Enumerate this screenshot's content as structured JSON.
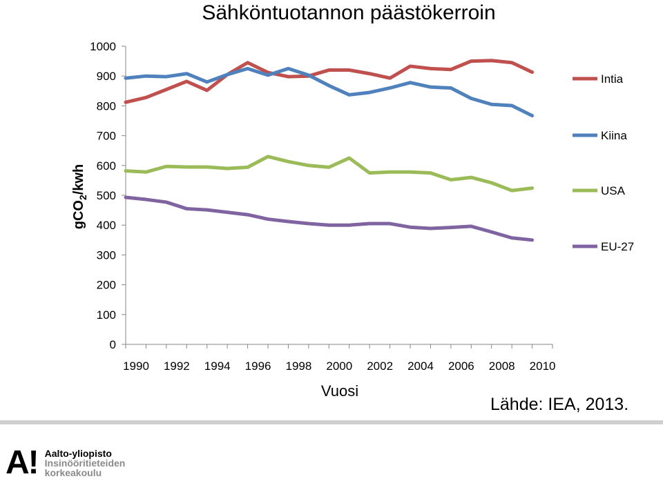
{
  "chart_data": {
    "type": "line",
    "title": "Sähköntuotannon päästökerroin",
    "xlabel": "Vuosi",
    "ylabel_main": "gCO",
    "ylabel_sub": "2",
    "ylabel_tail": "/kwh",
    "ylim": [
      0,
      1000
    ],
    "yticks": [
      0,
      100,
      200,
      300,
      400,
      500,
      600,
      700,
      800,
      900,
      1000
    ],
    "xlim": [
      1990,
      2011
    ],
    "xticks": [
      1990,
      1992,
      1994,
      1996,
      1998,
      2000,
      2002,
      2004,
      2006,
      2008,
      2010
    ],
    "x": [
      1990,
      1991,
      1992,
      1993,
      1994,
      1995,
      1996,
      1997,
      1998,
      1999,
      2000,
      2001,
      2002,
      2003,
      2004,
      2005,
      2006,
      2007,
      2008,
      2009,
      2010
    ],
    "series": [
      {
        "name": "Intia",
        "color": "#c0504d",
        "values": [
          812,
          828,
          855,
          882,
          852,
          905,
          945,
          912,
          898,
          900,
          920,
          920,
          908,
          893,
          933,
          925,
          922,
          950,
          952,
          945,
          913
        ]
      },
      {
        "name": "Kiina",
        "color": "#4f81bd",
        "values": [
          893,
          900,
          898,
          908,
          880,
          905,
          925,
          903,
          925,
          903,
          868,
          837,
          845,
          860,
          878,
          863,
          860,
          825,
          805,
          801,
          767
        ]
      },
      {
        "name": "USA",
        "color": "#9bbb59",
        "values": [
          582,
          578,
          597,
          595,
          595,
          590,
          594,
          630,
          613,
          600,
          594,
          625,
          575,
          578,
          578,
          575,
          552,
          560,
          542,
          516,
          524
        ]
      },
      {
        "name": "EU-27",
        "color": "#8064a2",
        "values": [
          493,
          486,
          477,
          455,
          451,
          443,
          435,
          420,
          412,
          405,
          400,
          400,
          405,
          405,
          393,
          389,
          392,
          396,
          377,
          357,
          350
        ]
      }
    ],
    "grid": false,
    "legend": "right"
  },
  "source_note": "Lähde: IEA, 2013.",
  "footer": {
    "logo_mark": "A!",
    "logo_line1": "Aalto-yliopisto",
    "logo_line2": "Insinööritieteiden",
    "logo_line3": "korkeakoulu"
  }
}
